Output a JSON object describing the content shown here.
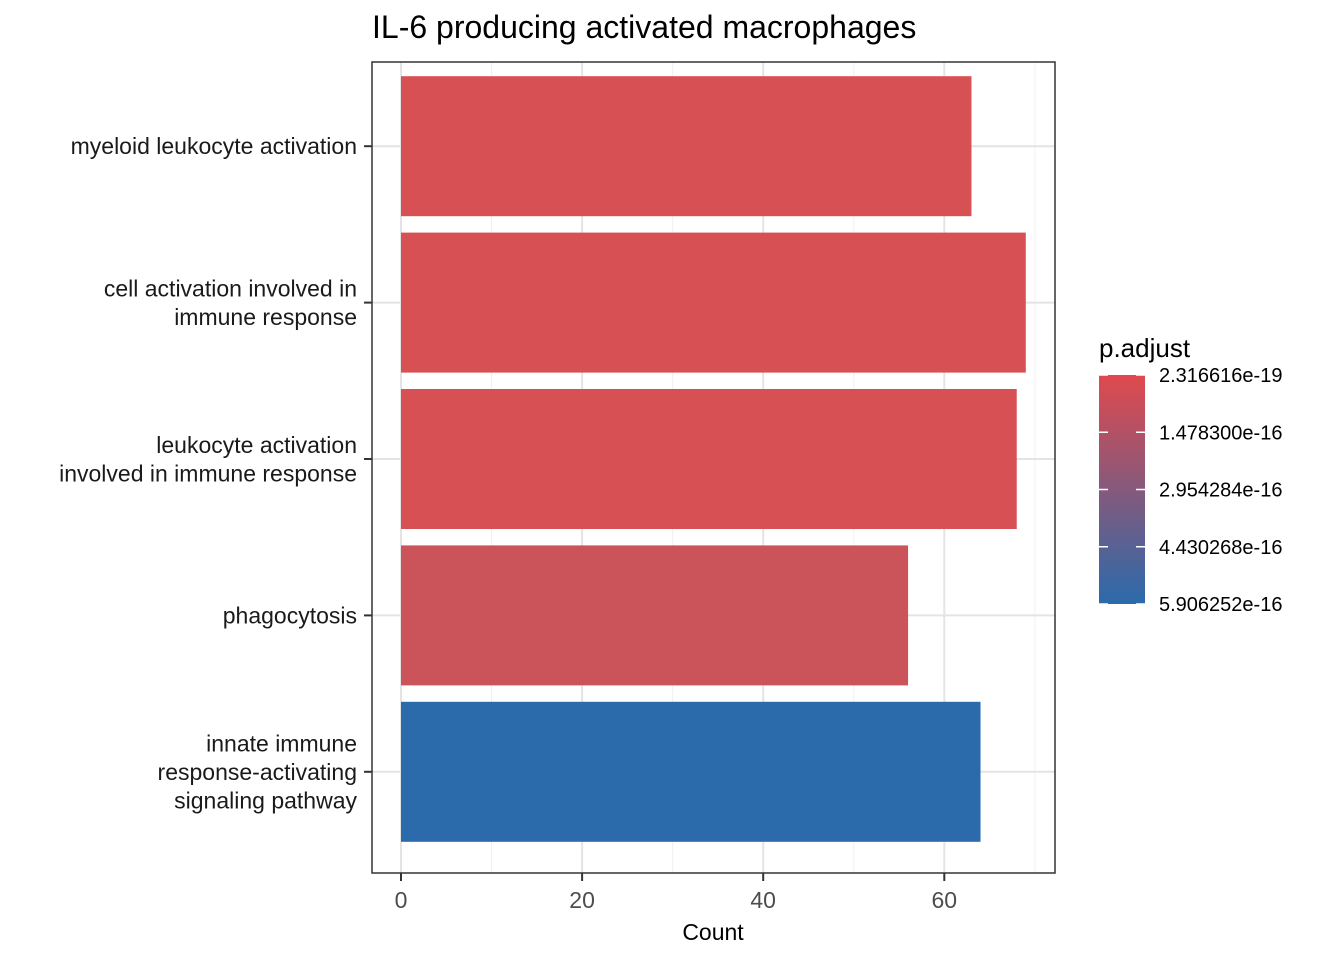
{
  "chart_data": {
    "type": "bar",
    "orientation": "horizontal",
    "title": "IL-6 producing activated macrophages",
    "xlabel": "Count",
    "ylabel": "",
    "xlim": [
      0,
      72
    ],
    "x_ticks": [
      0,
      20,
      40,
      60
    ],
    "grid": true,
    "categories": [
      [
        "myeloid leukocyte activation"
      ],
      [
        "cell activation involved in",
        "immune response"
      ],
      [
        "leukocyte activation",
        "involved in immune response"
      ],
      [
        "phagocytosis"
      ],
      [
        "innate immune",
        "response-activating",
        "signaling pathway"
      ]
    ],
    "values": [
      63,
      69,
      68,
      56,
      64
    ],
    "colors": [
      "#d75053",
      "#d75053",
      "#d75053",
      "#ca5459",
      "#2b6aab"
    ],
    "legend": {
      "title": "p.adjust",
      "placement": "right",
      "gradient_top": "#e0494e",
      "gradient_bottom": "#2b6aab",
      "labels": [
        "2.316616e-19",
        "1.478300e-16",
        "2.954284e-16",
        "4.430268e-16",
        "5.906252e-16"
      ]
    }
  }
}
